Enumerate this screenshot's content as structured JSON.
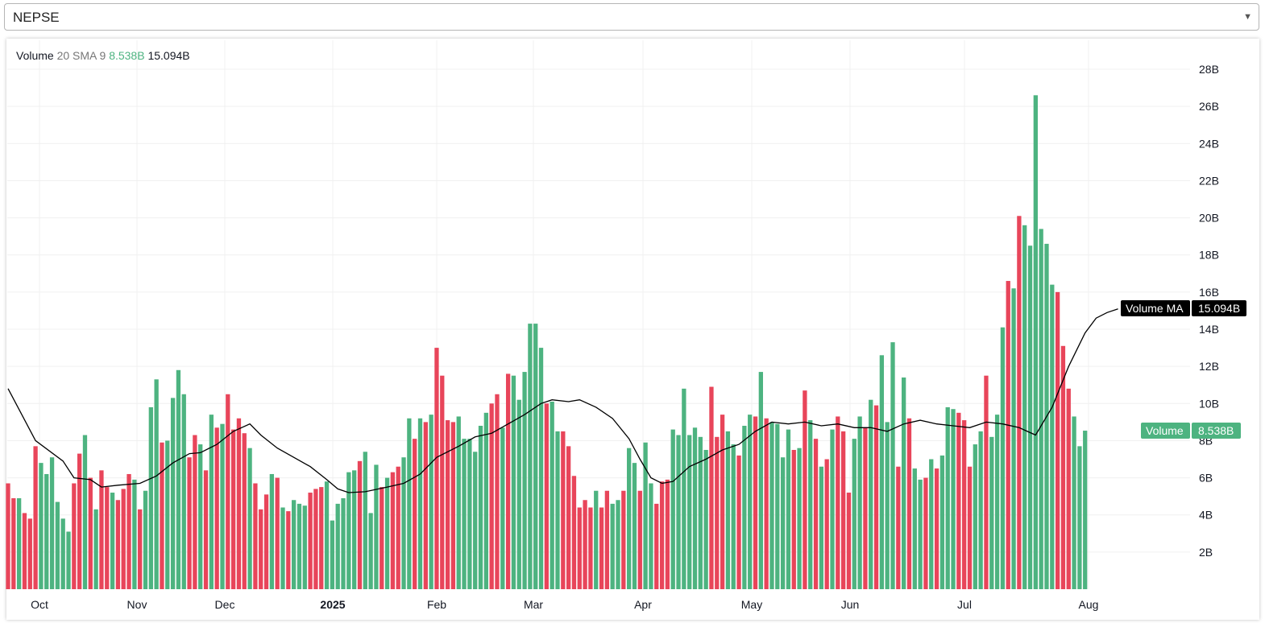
{
  "selector": {
    "value": "NEPSE",
    "arrow_icon": "chevron-down-icon"
  },
  "legend": {
    "name": "Volume",
    "ma_label": "20 SMA 9",
    "volume_value": "8.538B",
    "ma_value": "15.094B"
  },
  "badges": {
    "ma_label": "Volume MA",
    "ma_value": "15.094B",
    "vol_label": "Volume",
    "vol_value": "8.538B"
  },
  "colors": {
    "up": "#4db380",
    "down": "#e8455a",
    "ma_line": "#000000",
    "ma_badge": "#000000",
    "grid": "#f0f0f0"
  },
  "chart_data": {
    "type": "bar",
    "title": "",
    "xlabel": "",
    "ylabel": "",
    "y_unit": "B",
    "ylim": [
      0,
      29
    ],
    "y_ticks": [
      "2B",
      "4B",
      "6B",
      "8B",
      "10B",
      "12B",
      "14B",
      "16B",
      "18B",
      "20B",
      "22B",
      "24B",
      "26B",
      "28B"
    ],
    "x_ticks": [
      "Oct",
      "Nov",
      "Dec",
      "2025",
      "Feb",
      "Mar",
      "Apr",
      "May",
      "Jun",
      "Jul",
      "Aug"
    ],
    "grid": true,
    "series": [
      {
        "name": "Volume",
        "direction": "ddgdddggggggddgdgddgdddgdgggdggggddgdgdgddddgdddgdgdgggdddggggggdgggdgddggdgdgddddggggggddgdggggggdggddddddgddggdggdggdddgggggggdddggdggdgdggggdgdgdgdgdddggdgdgggdgdggdgdgggdddggdgggdgdggggggdddggggdddgggggggdddggggddddg",
        "values": [
          5.7,
          4.9,
          4.9,
          4.1,
          3.8,
          7.7,
          6.8,
          6.2,
          7.1,
          4.7,
          3.8,
          3.1,
          5.7,
          7.3,
          8.3,
          6.0,
          4.3,
          6.4,
          5.5,
          5.2,
          4.8,
          5.4,
          6.2,
          5.9,
          4.3,
          5.3,
          9.8,
          11.3,
          7.9,
          8.0,
          10.3,
          11.8,
          10.5,
          7.1,
          8.3,
          7.8,
          6.4,
          9.4,
          8.7,
          8.9,
          10.5,
          8.6,
          9.2,
          8.4,
          7.6,
          5.7,
          4.3,
          5.1,
          6.2,
          6.0,
          4.4,
          4.2,
          4.8,
          4.6,
          4.5,
          5.2,
          5.4,
          5.5,
          5.8,
          3.7,
          4.6,
          4.9,
          6.3,
          6.4,
          6.9,
          7.4,
          4.1,
          6.7,
          5.5,
          6.0,
          6.3,
          6.6,
          7.1,
          9.2,
          8.1,
          9.2,
          9.0,
          9.4,
          13.0,
          11.5,
          9.1,
          9.0,
          9.3,
          8.1,
          8.1,
          7.4,
          8.8,
          9.5,
          10.0,
          10.5,
          8.7,
          11.6,
          11.5,
          10.2,
          11.7,
          14.3,
          14.3,
          13.0,
          10.0,
          10.1,
          8.5,
          8.5,
          7.7,
          6.1,
          4.4,
          4.8,
          4.4,
          5.3,
          4.4,
          5.3,
          4.6,
          4.8,
          5.3,
          7.6,
          6.8,
          5.3,
          7.9,
          5.7,
          4.6,
          5.8,
          5.9,
          8.6,
          8.3,
          10.8,
          8.3,
          8.7,
          8.2,
          7.5,
          10.9,
          8.2,
          9.4,
          8.5,
          7.8,
          7.2,
          8.8,
          9.4,
          9.3,
          11.7,
          9.2,
          9.0,
          8.9,
          7.1,
          8.6,
          7.5,
          7.6,
          10.7,
          9.1,
          8.1,
          6.6,
          7.0,
          8.6,
          9.3,
          8.5,
          5.2,
          8.1,
          9.3,
          8.7,
          10.2,
          9.9,
          12.6,
          9.0,
          13.3,
          6.6,
          11.4,
          9.2,
          6.5,
          5.9,
          6.0,
          7.0,
          6.5,
          7.2,
          9.8,
          9.7,
          9.5,
          9.1,
          6.6,
          7.8,
          8.5,
          11.5,
          8.2,
          9.4,
          14.1,
          16.6,
          16.2,
          20.1,
          19.6,
          18.5,
          26.6,
          19.4,
          18.6,
          16.4,
          16.0,
          13.1,
          10.8,
          9.3,
          7.7,
          8.538
        ]
      },
      {
        "name": "Volume MA",
        "type": "line",
        "points": [
          [
            0,
            10.8
          ],
          [
            5,
            8.0
          ],
          [
            10,
            6.9
          ],
          [
            12,
            6.0
          ],
          [
            15,
            5.9
          ],
          [
            17,
            5.5
          ],
          [
            20,
            5.6
          ],
          [
            24,
            5.7
          ],
          [
            27,
            6.1
          ],
          [
            30,
            6.8
          ],
          [
            33,
            7.3
          ],
          [
            35,
            7.35
          ],
          [
            38,
            7.8
          ],
          [
            41,
            8.5
          ],
          [
            44,
            8.9
          ],
          [
            46,
            8.3
          ],
          [
            49,
            7.6
          ],
          [
            52,
            7.1
          ],
          [
            55,
            6.6
          ],
          [
            58,
            5.9
          ],
          [
            60,
            5.4
          ],
          [
            62,
            5.2
          ],
          [
            65,
            5.25
          ],
          [
            69,
            5.5
          ],
          [
            72,
            5.7
          ],
          [
            75,
            6.2
          ],
          [
            78,
            7.1
          ],
          [
            82,
            7.7
          ],
          [
            85,
            8.2
          ],
          [
            88,
            8.4
          ],
          [
            91,
            8.9
          ],
          [
            94,
            9.4
          ],
          [
            97,
            10.0
          ],
          [
            99,
            10.2
          ],
          [
            102,
            10.1
          ],
          [
            104,
            10.2
          ],
          [
            107,
            9.8
          ],
          [
            110,
            9.2
          ],
          [
            113,
            8.1
          ],
          [
            115,
            7.0
          ],
          [
            117,
            6.0
          ],
          [
            119,
            5.7
          ],
          [
            121,
            5.8
          ],
          [
            124,
            6.6
          ],
          [
            127,
            7.0
          ],
          [
            130,
            7.5
          ],
          [
            133,
            7.8
          ],
          [
            136,
            8.5
          ],
          [
            139,
            9.0
          ],
          [
            142,
            8.9
          ],
          [
            145,
            9.0
          ],
          [
            148,
            8.8
          ],
          [
            151,
            8.9
          ],
          [
            154,
            8.7
          ],
          [
            157,
            8.7
          ],
          [
            160,
            8.5
          ],
          [
            163,
            8.9
          ],
          [
            166,
            9.1
          ],
          [
            169,
            8.9
          ],
          [
            172,
            8.8
          ],
          [
            175,
            8.7
          ],
          [
            178,
            9.0
          ],
          [
            181,
            8.9
          ],
          [
            184,
            8.7
          ],
          [
            187,
            8.3
          ],
          [
            190,
            9.8
          ],
          [
            193,
            12.0
          ],
          [
            196,
            13.8
          ],
          [
            198,
            14.6
          ],
          [
            200,
            14.9
          ],
          [
            202,
            15.094
          ]
        ]
      }
    ]
  }
}
